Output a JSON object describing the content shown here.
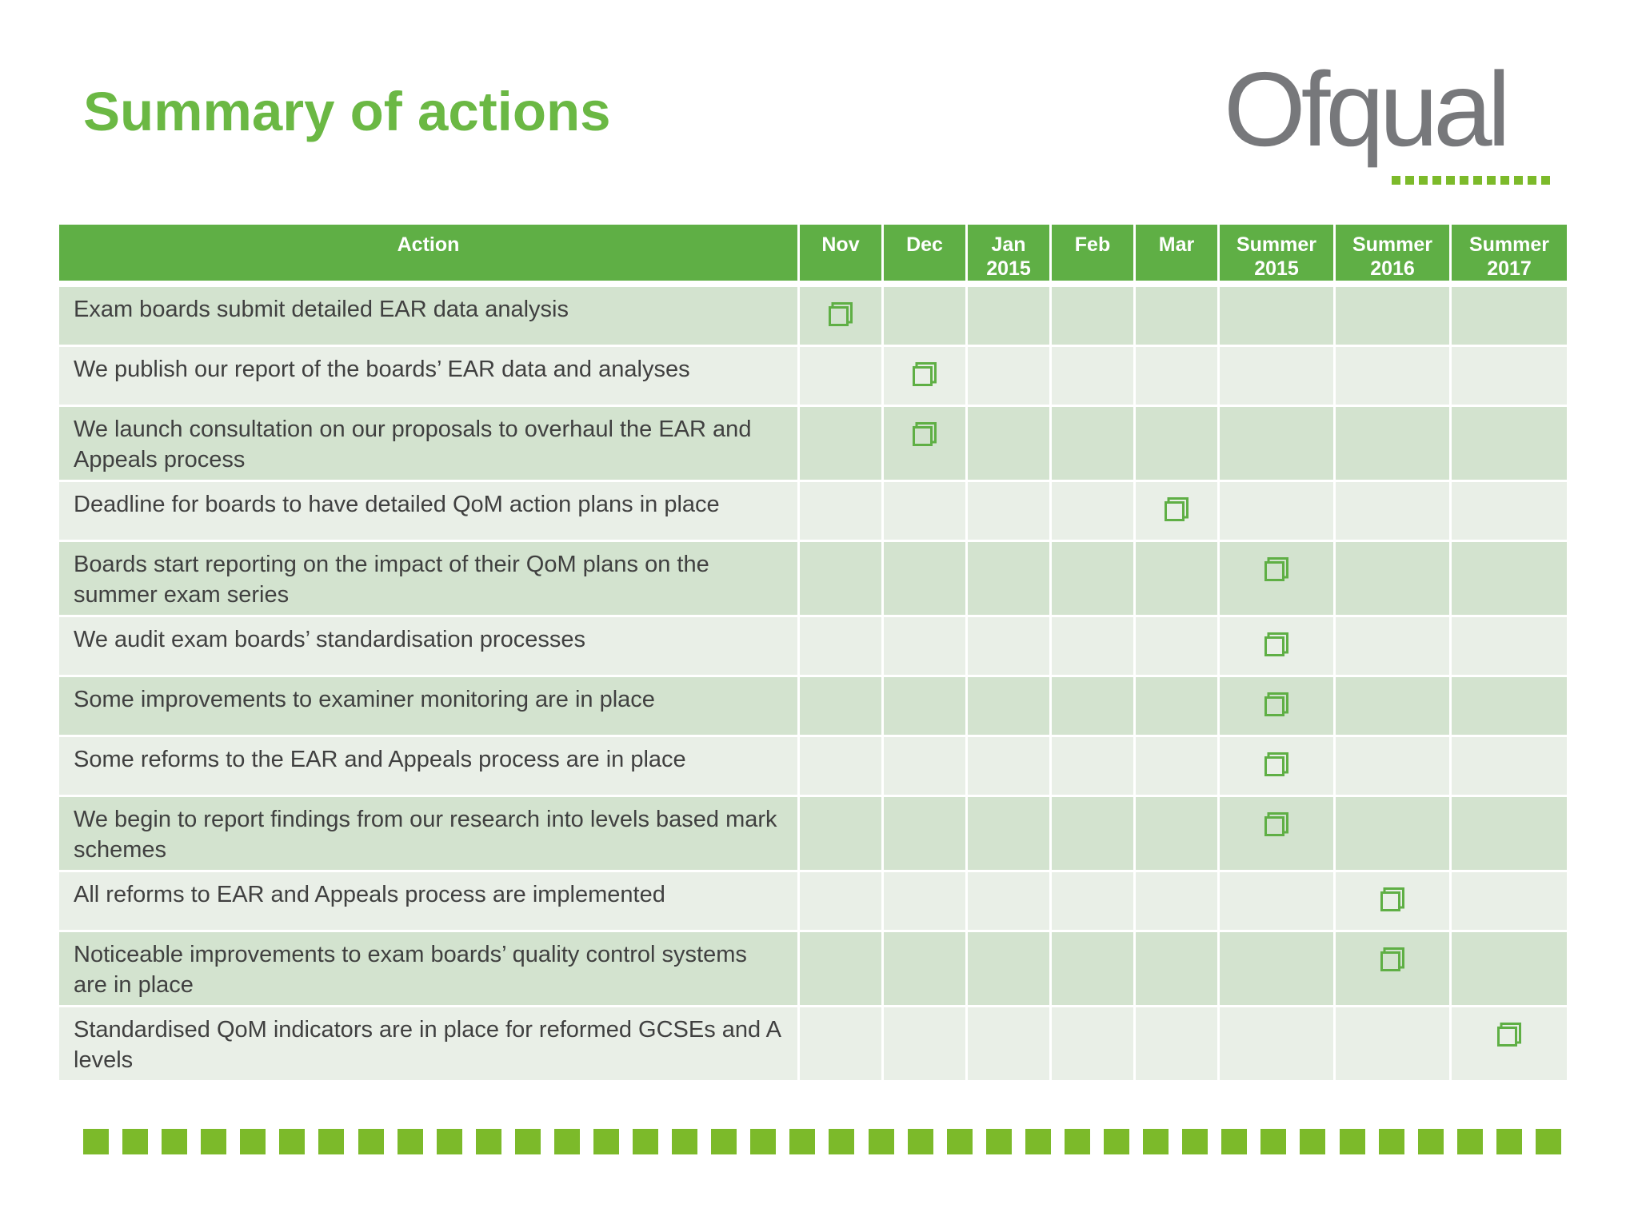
{
  "page": {
    "title": "Summary of actions",
    "logo_text": "Ofqual"
  },
  "colors": {
    "title_green": "#6bb844",
    "header_green": "#5faf45",
    "row_dark": "#d3e3cf",
    "row_light": "#e9efe7",
    "marker_green": "#5faf45",
    "logo_grey": "#77787b",
    "strip_green": "#7cba2a"
  },
  "table": {
    "columns": [
      {
        "line1": "Action",
        "line2": ""
      },
      {
        "line1": "Nov",
        "line2": ""
      },
      {
        "line1": "Dec",
        "line2": ""
      },
      {
        "line1": "Jan",
        "line2": "2015"
      },
      {
        "line1": "Feb",
        "line2": ""
      },
      {
        "line1": "Mar",
        "line2": ""
      },
      {
        "line1": "Summer",
        "line2": "2015"
      },
      {
        "line1": "Summer",
        "line2": "2016"
      },
      {
        "line1": "Summer",
        "line2": "2017"
      }
    ],
    "rows": [
      {
        "action": "Exam boards submit detailed EAR data analysis",
        "milestone": "Nov"
      },
      {
        "action": "We publish our report of the boards’ EAR data and analyses",
        "milestone": "Dec"
      },
      {
        "action": "We launch consultation on our proposals to overhaul the EAR and Appeals process",
        "milestone": "Dec"
      },
      {
        "action": "Deadline for boards to have detailed QoM action plans in place",
        "milestone": "Mar"
      },
      {
        "action": "Boards start reporting on the impact of their QoM plans on the summer exam series",
        "milestone": "Summer 2015"
      },
      {
        "action": "We audit exam boards’ standardisation processes",
        "milestone": "Summer 2015"
      },
      {
        "action": "Some improvements to examiner monitoring are in place",
        "milestone": "Summer 2015"
      },
      {
        "action": "Some reforms to the EAR and Appeals process are in place",
        "milestone": "Summer 2015"
      },
      {
        "action": "We begin to report findings from our research into levels based mark schemes",
        "milestone": "Summer 2015"
      },
      {
        "action": "All reforms to EAR and Appeals process are implemented",
        "milestone": "Summer 2016"
      },
      {
        "action": "Noticeable improvements to exam boards’ quality control systems are in place",
        "milestone": "Summer 2016"
      },
      {
        "action": "Standardised QoM indicators are in place for reformed GCSEs and A levels",
        "milestone": "Summer 2017"
      }
    ],
    "marker_icon": "checkbox-square-icon"
  }
}
